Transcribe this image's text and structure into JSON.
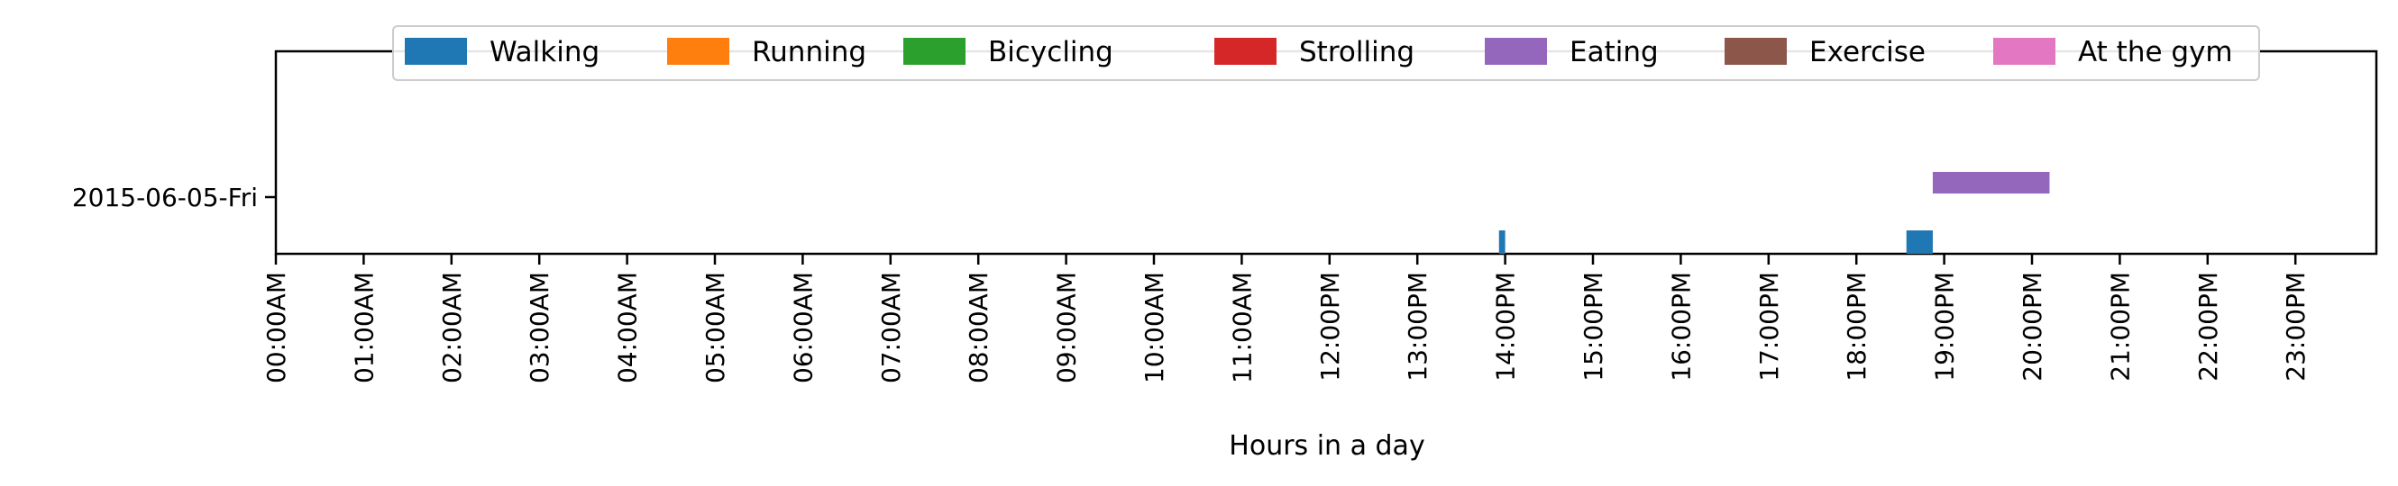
{
  "chart_data": {
    "type": "timeline",
    "xlabel": "Hours in a day",
    "ylabel": "",
    "xlim": [
      0,
      24
    ],
    "x_ticks": [
      "00:00AM",
      "01:00AM",
      "02:00AM",
      "03:00AM",
      "04:00AM",
      "05:00AM",
      "06:00AM",
      "07:00AM",
      "08:00AM",
      "09:00AM",
      "10:00AM",
      "11:00AM",
      "12:00PM",
      "13:00PM",
      "14:00PM",
      "15:00PM",
      "16:00PM",
      "17:00PM",
      "18:00PM",
      "19:00PM",
      "20:00PM",
      "21:00PM",
      "22:00PM",
      "23:00PM"
    ],
    "categories": [
      "2015-06-05-Fri"
    ],
    "legend_position": "top",
    "legend": [
      {
        "name": "Walking",
        "color": "#1f77b4"
      },
      {
        "name": "Running",
        "color": "#ff7f0e"
      },
      {
        "name": "Bicycling",
        "color": "#2ca02c"
      },
      {
        "name": "Strolling",
        "color": "#d62728"
      },
      {
        "name": "Eating",
        "color": "#9467bd"
      },
      {
        "name": "Exercise",
        "color": "#8c564b"
      },
      {
        "name": "At the gym",
        "color": "#e377c2"
      }
    ],
    "segments": [
      {
        "activity": "Walking",
        "day": "2015-06-05-Fri",
        "start": 13.93,
        "end": 14.0
      },
      {
        "activity": "Walking",
        "day": "2015-06-05-Fri",
        "start": 18.57,
        "end": 18.87
      },
      {
        "activity": "Eating",
        "day": "2015-06-05-Fri",
        "start": 18.87,
        "end": 20.2
      }
    ]
  }
}
